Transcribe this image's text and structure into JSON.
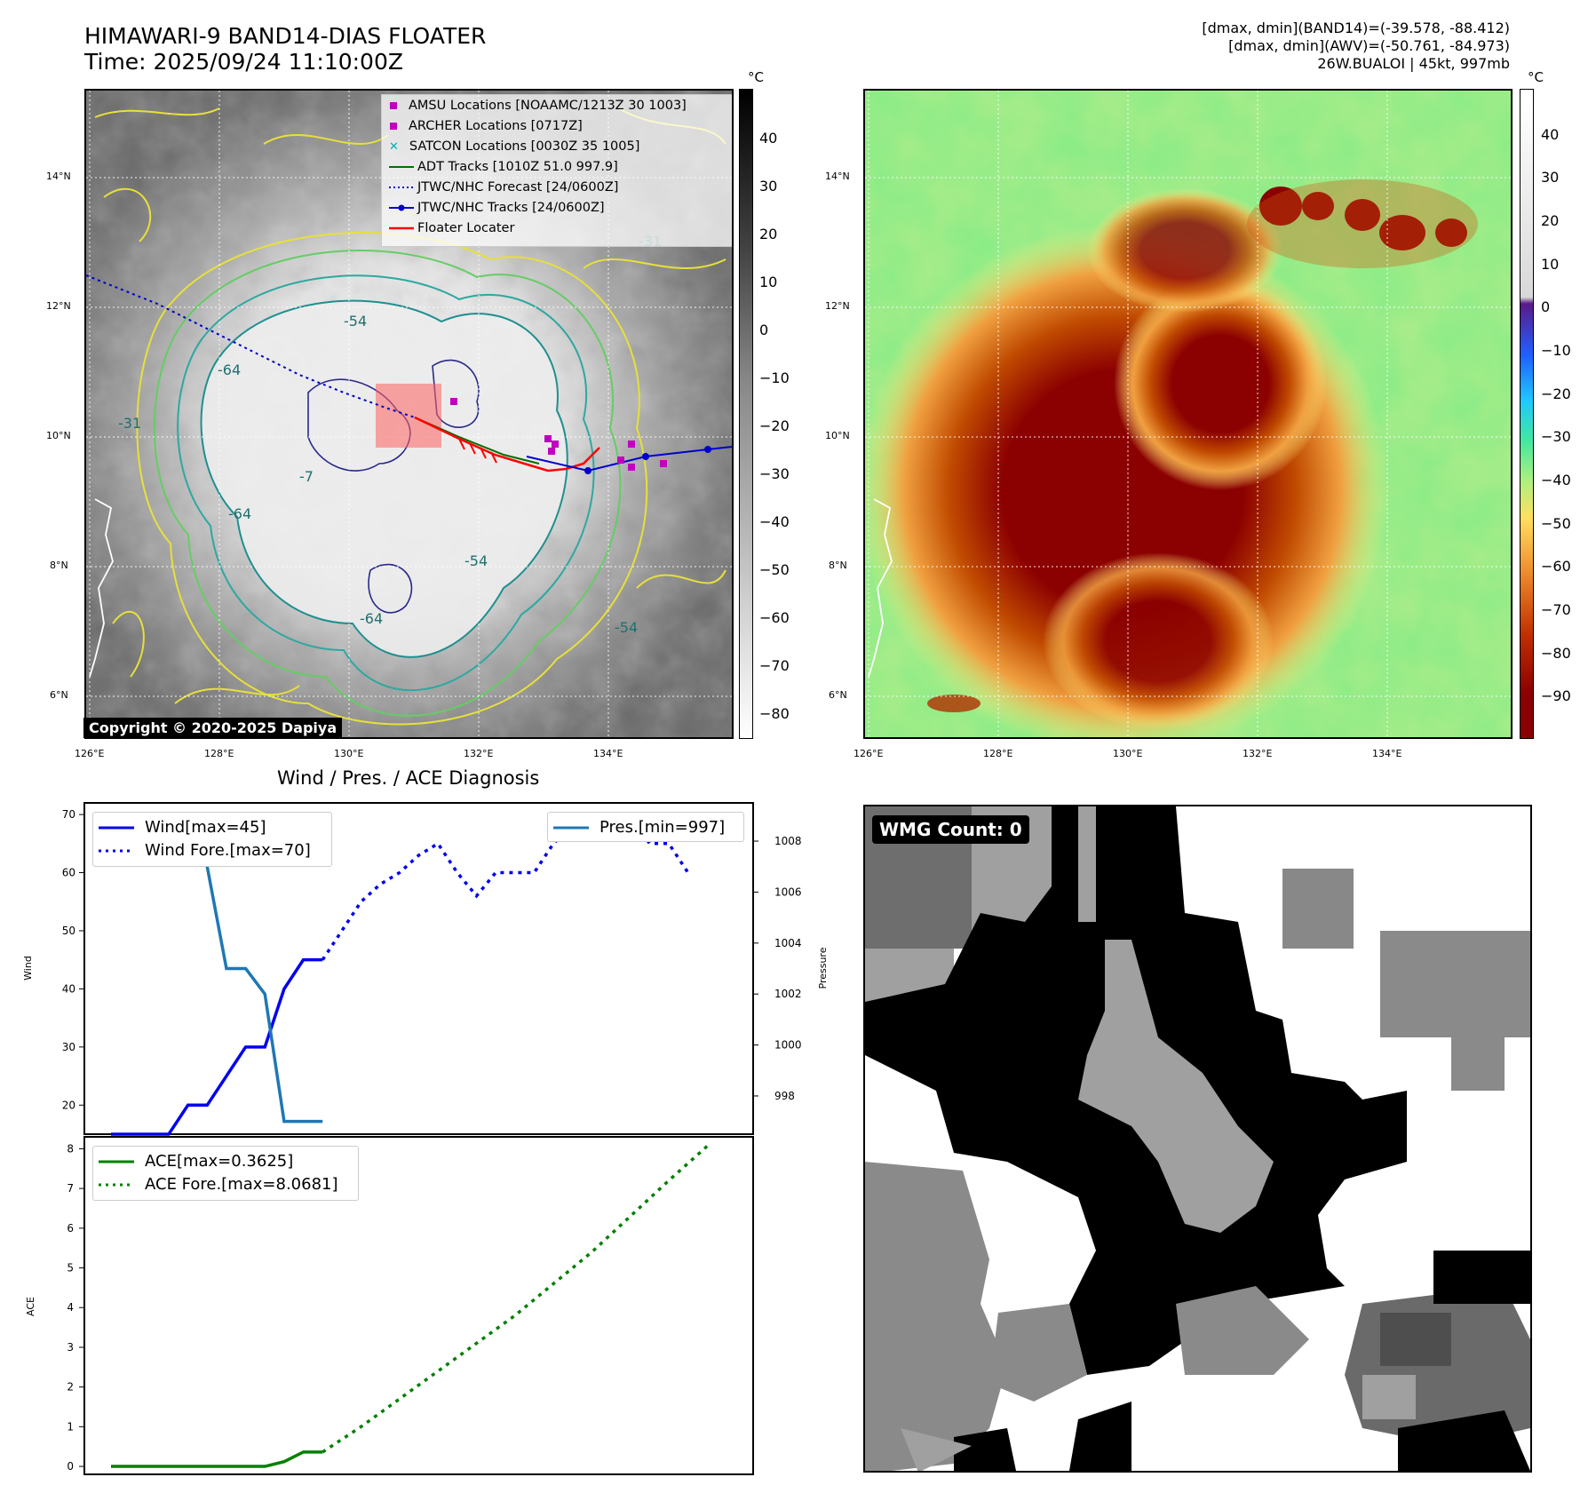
{
  "header": {
    "title_line1": "HIMAWARI-9 BAND14-DIAS FLOATER",
    "title_line2": "Time: 2025/09/24 11:10:00Z",
    "info_line1": "[dmax, dmin](BAND14)=(-39.578, -88.412)",
    "info_line2": "[dmax, dmin](AWV)=(-50.761, -84.973)",
    "info_line3": "26W.BUALOI | 45kt, 997mb"
  },
  "map": {
    "lat_labels": [
      "14°N",
      "12°N",
      "10°N",
      "8°N",
      "6°N"
    ],
    "lon_labels": [
      "126°E",
      "128°E",
      "130°E",
      "132°E",
      "134°E"
    ],
    "copyright": "Copyright © 2020-2025 Dapiya",
    "legend": [
      {
        "label": "AMSU Locations [NOAAMC/1213Z 30 1003]",
        "color": "#c000c0",
        "marker": "square"
      },
      {
        "label": "ARCHER Locations [0717Z]",
        "color": "#c000c0",
        "marker": "square"
      },
      {
        "label": "SATCON Locations [0030Z 35 1005]",
        "color": "#00b0b0",
        "marker": "x"
      },
      {
        "label": "ADT Tracks [1010Z 51.0 997.9]",
        "color": "#007000",
        "marker": "line"
      },
      {
        "label": "JTWC/NHC Forecast [24/0600Z]",
        "color": "#0000cc",
        "marker": "dotted"
      },
      {
        "label": "JTWC/NHC Tracks [24/0600Z]",
        "color": "#0000cc",
        "marker": "line-dot"
      },
      {
        "label": "Floater Locater",
        "color": "#ff0000",
        "marker": "line"
      }
    ],
    "contour_labels": [
      "-64",
      "-64",
      "-54",
      "-54",
      "-64",
      "-7",
      "-54",
      "-31",
      "-31"
    ],
    "left_colorbar": {
      "unit": "°C",
      "ticks": [
        "40",
        "30",
        "20",
        "10",
        "0",
        "−10",
        "−20",
        "−30",
        "−40",
        "−50",
        "−60",
        "−70",
        "−80"
      ]
    },
    "right_colorbar": {
      "unit": "°C",
      "ticks": [
        "40",
        "30",
        "20",
        "10",
        "0",
        "−10",
        "−20",
        "−30",
        "−40",
        "−50",
        "−60",
        "−70",
        "−80",
        "−90"
      ]
    }
  },
  "diagnosis": {
    "title": "Wind / Pres. / ACE Diagnosis",
    "wind_ylabel": "Wind",
    "pressure_ylabel": "Pressure",
    "ace_ylabel": "ACE",
    "wind_ticks": [
      "70",
      "60",
      "50",
      "40",
      "30",
      "20"
    ],
    "pressure_ticks": [
      "1008",
      "1006",
      "1004",
      "1002",
      "1000",
      "998"
    ],
    "ace_ticks": [
      "8",
      "7",
      "6",
      "5",
      "4",
      "3",
      "2",
      "1",
      "0"
    ],
    "legend_wind": "Wind[max=45]",
    "legend_wind_fore": "Wind Fore.[max=70]",
    "legend_pres": "Pres.[min=997]",
    "legend_ace": "ACE[max=0.3625]",
    "legend_ace_fore": "ACE Fore.[max=8.0681]"
  },
  "wmg": {
    "label": "WMG Count: 0"
  },
  "chart_data": [
    {
      "type": "line",
      "title": "Wind / Pres. / ACE Diagnosis",
      "ylabel": "Wind",
      "ylim": [
        15,
        72
      ],
      "y2label": "Pressure",
      "y2lim": [
        996.5,
        1009.5
      ],
      "series": [
        {
          "name": "Wind[max=45]",
          "axis": "left",
          "style": "solid",
          "color": "#0000ee",
          "x": [
            0,
            1,
            2,
            3,
            4,
            5,
            6,
            7,
            8,
            9,
            10,
            11
          ],
          "y": [
            15,
            15,
            15,
            15,
            20,
            20,
            25,
            30,
            30,
            40,
            45,
            45
          ]
        },
        {
          "name": "Wind Fore.[max=70]",
          "axis": "left",
          "style": "dotted",
          "color": "#0000ee",
          "x": [
            11,
            12,
            13,
            14,
            15,
            16,
            17,
            18,
            19,
            20,
            21,
            22,
            23,
            24,
            25,
            26,
            27,
            28,
            29,
            30
          ],
          "y": [
            45,
            50,
            55,
            58,
            60,
            63,
            65,
            60,
            56,
            60,
            60,
            60,
            65,
            68,
            70,
            70,
            70,
            65,
            65,
            60
          ]
        },
        {
          "name": "Pres.[min=997]",
          "axis": "right",
          "style": "solid",
          "color": "#1f77b4",
          "x": [
            0,
            1,
            2,
            3,
            4,
            5,
            6,
            7,
            8,
            9,
            10,
            11
          ],
          "y": [
            1009,
            1008,
            1008,
            1008,
            1008,
            1007,
            1003,
            1003,
            1002,
            997,
            997,
            997
          ]
        }
      ]
    },
    {
      "type": "line",
      "ylabel": "ACE",
      "ylim": [
        -0.2,
        8.3
      ],
      "series": [
        {
          "name": "ACE[max=0.3625]",
          "style": "solid",
          "color": "#008000",
          "x": [
            0,
            1,
            2,
            3,
            4,
            5,
            6,
            7,
            8,
            9,
            10,
            11
          ],
          "y": [
            0,
            0,
            0,
            0,
            0,
            0,
            0,
            0,
            0,
            0.12,
            0.3625,
            0.3625
          ]
        },
        {
          "name": "ACE Fore.[max=8.0681]",
          "style": "dotted",
          "color": "#008000",
          "x": [
            11,
            13,
            15,
            17,
            19,
            21,
            23,
            25,
            27,
            29,
            31
          ],
          "y": [
            0.3625,
            1.0,
            1.7,
            2.4,
            3.1,
            3.8,
            4.6,
            5.4,
            6.3,
            7.2,
            8.0681
          ]
        }
      ]
    }
  ]
}
